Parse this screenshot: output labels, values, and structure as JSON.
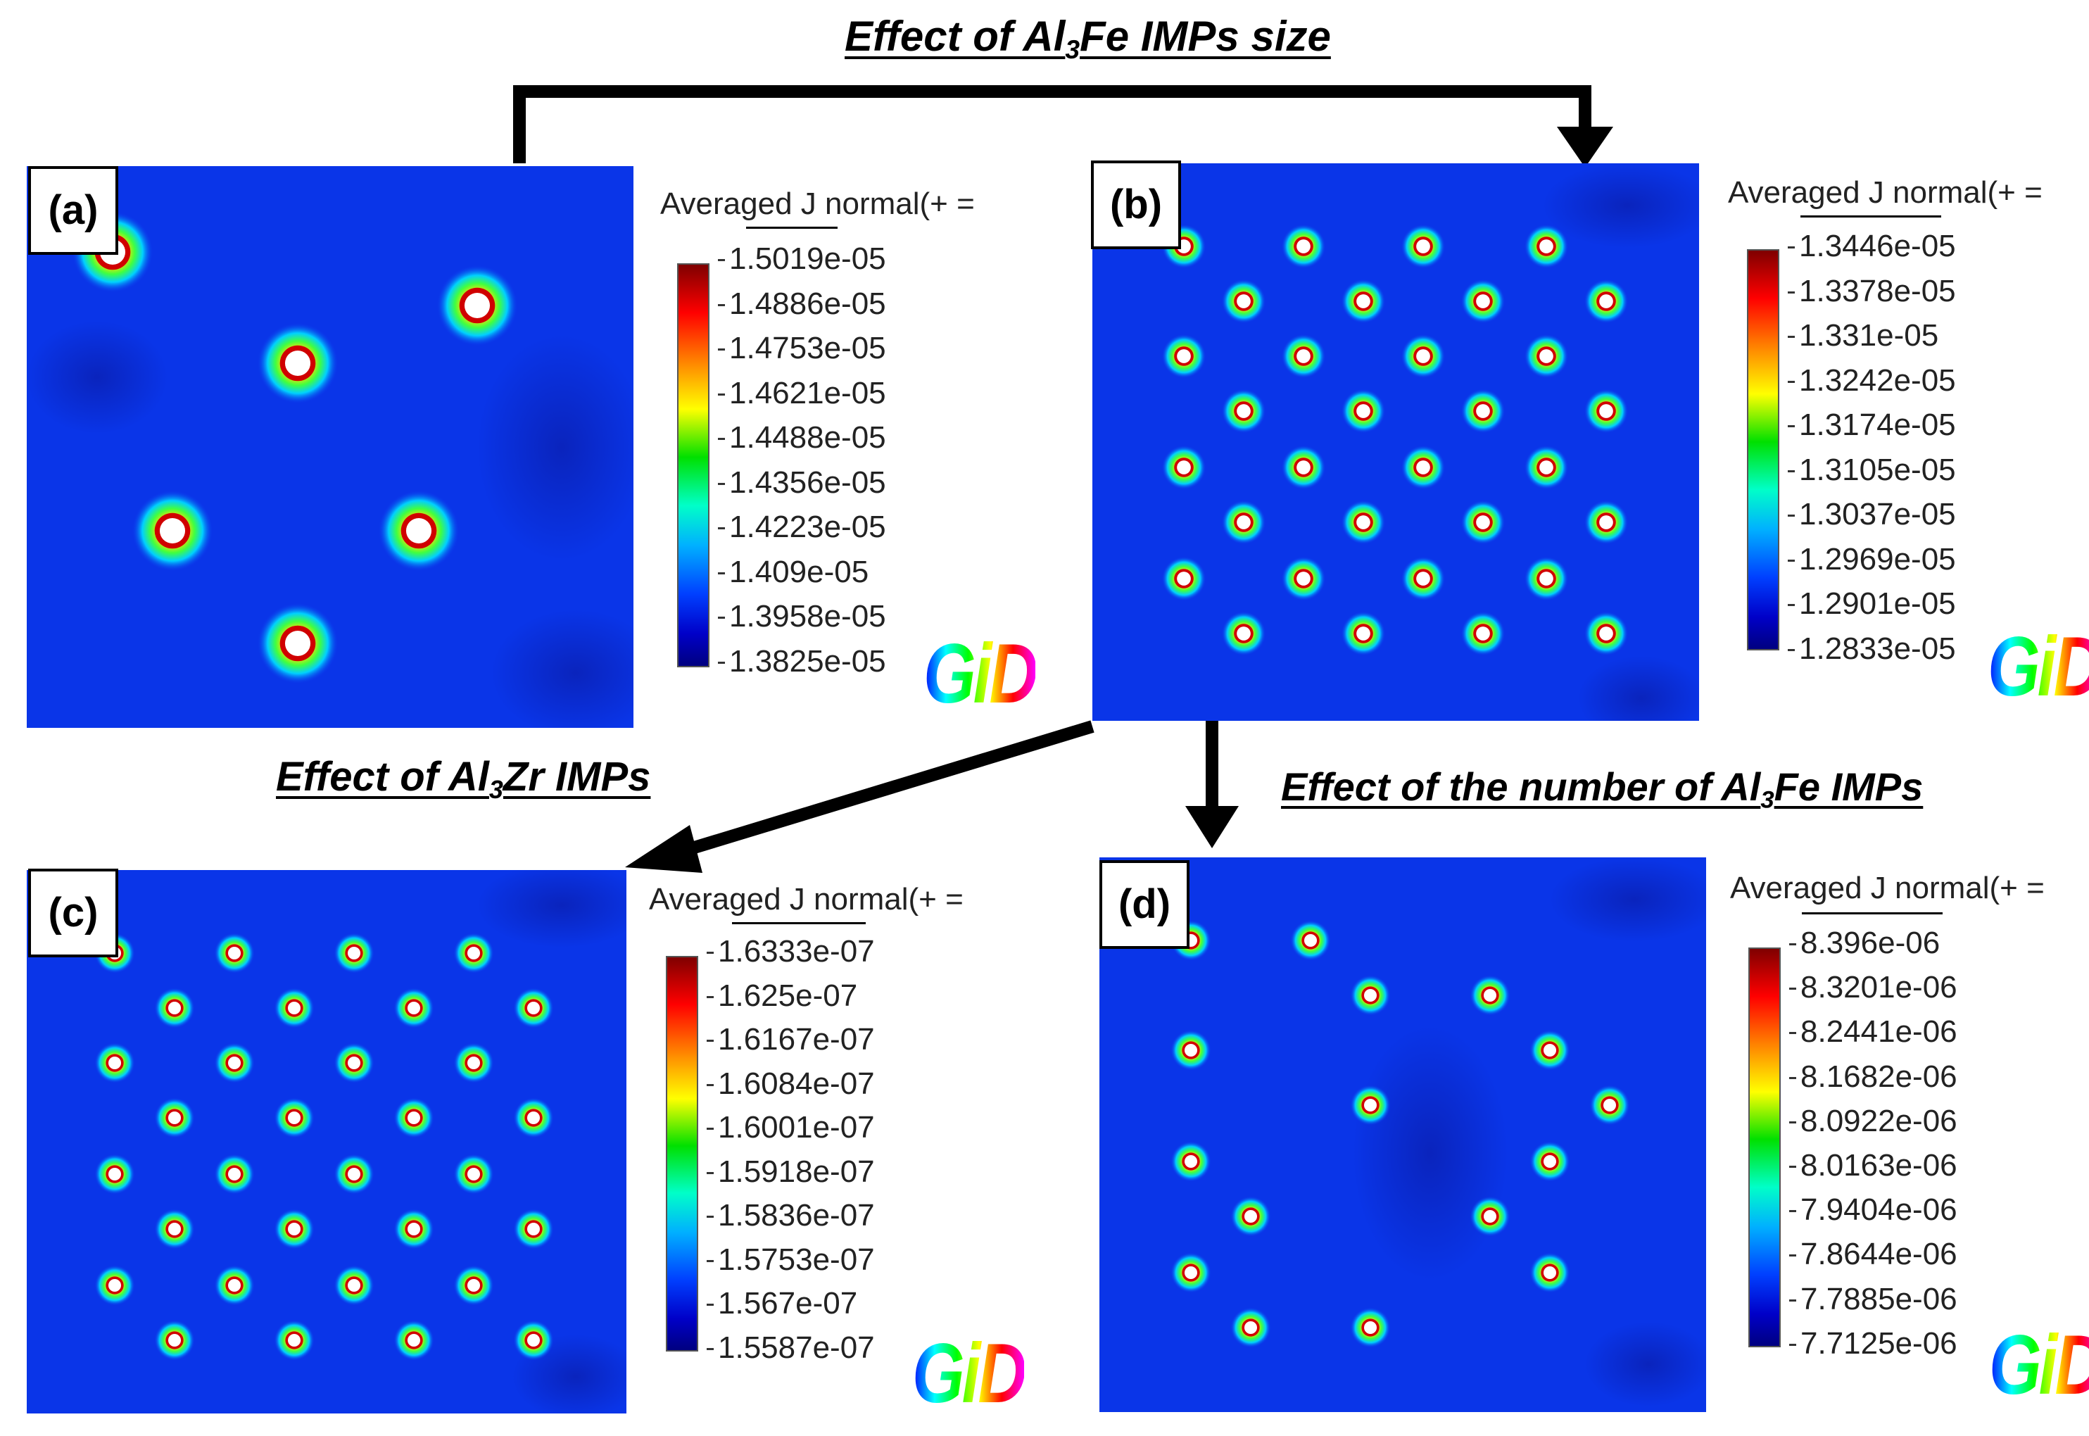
{
  "headings": {
    "size": {
      "pre": "Effect of Al",
      "sub": "3",
      "post": "Fe IMPs size"
    },
    "zr": {
      "pre": "Effect of Al",
      "sub": "3",
      "post": "Zr IMPs"
    },
    "number": {
      "pre": "Effect of the number of Al",
      "sub": "3",
      "post": "Fe IMPs"
    }
  },
  "panels": [
    {
      "label": "(a)",
      "legend_title": "Averaged J normal(+ =",
      "ticks": [
        "1.5019e-05",
        "1.4886e-05",
        "1.4753e-05",
        "1.4621e-05",
        "1.4488e-05",
        "1.4356e-05",
        "1.4223e-05",
        "1.409e-05",
        "1.3958e-05",
        "1.3825e-05"
      ],
      "logo": "GiD"
    },
    {
      "label": "(b)",
      "legend_title": "Averaged J normal(+ =",
      "ticks": [
        "1.3446e-05",
        "1.3378e-05",
        "1.331e-05",
        "1.3242e-05",
        "1.3174e-05",
        "1.3105e-05",
        "1.3037e-05",
        "1.2969e-05",
        "1.2901e-05",
        "1.2833e-05"
      ],
      "logo": "GiD"
    },
    {
      "label": "(c)",
      "legend_title": "Averaged J normal(+ =",
      "ticks": [
        "1.6333e-07",
        "1.625e-07",
        "1.6167e-07",
        "1.6084e-07",
        "1.6001e-07",
        "1.5918e-07",
        "1.5836e-07",
        "1.5753e-07",
        "1.567e-07",
        "1.5587e-07"
      ],
      "logo": "GiD"
    },
    {
      "label": "(d)",
      "legend_title": "Averaged J normal(+ =",
      "ticks": [
        "8.396e-06",
        "8.3201e-06",
        "8.2441e-06",
        "8.1682e-06",
        "8.0922e-06",
        "8.0163e-06",
        "7.9404e-06",
        "7.8644e-06",
        "7.7885e-06",
        "7.7125e-06"
      ],
      "logo": "GiD"
    }
  ],
  "colors": {
    "field_background": "#0a35e8",
    "field_dark": "#0a1fb0",
    "arrow": "#000000"
  }
}
